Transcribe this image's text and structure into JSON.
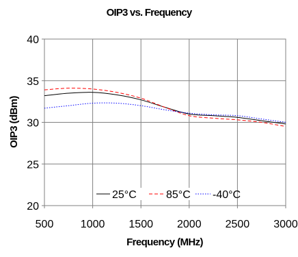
{
  "chart_data": {
    "type": "line",
    "title": "OIP3 vs. Frequency",
    "xlabel": "Frequency (MHz)",
    "ylabel": "OIP3 (dBm)",
    "xlim": [
      500,
      3000
    ],
    "ylim": [
      20,
      40
    ],
    "x_ticks": [
      "500",
      "1000",
      "1500",
      "2000",
      "2500",
      "3000"
    ],
    "y_ticks": [
      "20",
      "25",
      "30",
      "35",
      "40"
    ],
    "grid": true,
    "legend_position": "bottom-center",
    "series": [
      {
        "name": "25°C",
        "color": "#000000",
        "dash": "solid",
        "x": [
          500,
          750,
          1000,
          1250,
          1500,
          1750,
          2000,
          2250,
          2500,
          2750,
          3000
        ],
        "y": [
          33.2,
          33.5,
          33.6,
          33.3,
          32.7,
          31.8,
          31.0,
          30.8,
          30.6,
          30.2,
          29.8
        ]
      },
      {
        "name": "85°C",
        "color": "#ff0000",
        "dash": "dashed",
        "x": [
          500,
          750,
          1000,
          1250,
          1500,
          1750,
          2000,
          2250,
          2500,
          2750,
          3000
        ],
        "y": [
          33.9,
          34.1,
          34.0,
          33.6,
          32.9,
          31.8,
          30.8,
          30.5,
          30.3,
          30.0,
          29.5
        ]
      },
      {
        "name": "-40°C",
        "color": "#0000ff",
        "dash": "dotted",
        "x": [
          500,
          750,
          1000,
          1250,
          1500,
          1750,
          2000,
          2250,
          2500,
          2750,
          3000
        ],
        "y": [
          31.7,
          32.0,
          32.3,
          32.3,
          32.0,
          31.5,
          31.1,
          30.9,
          30.8,
          30.4,
          30.0
        ]
      }
    ]
  }
}
